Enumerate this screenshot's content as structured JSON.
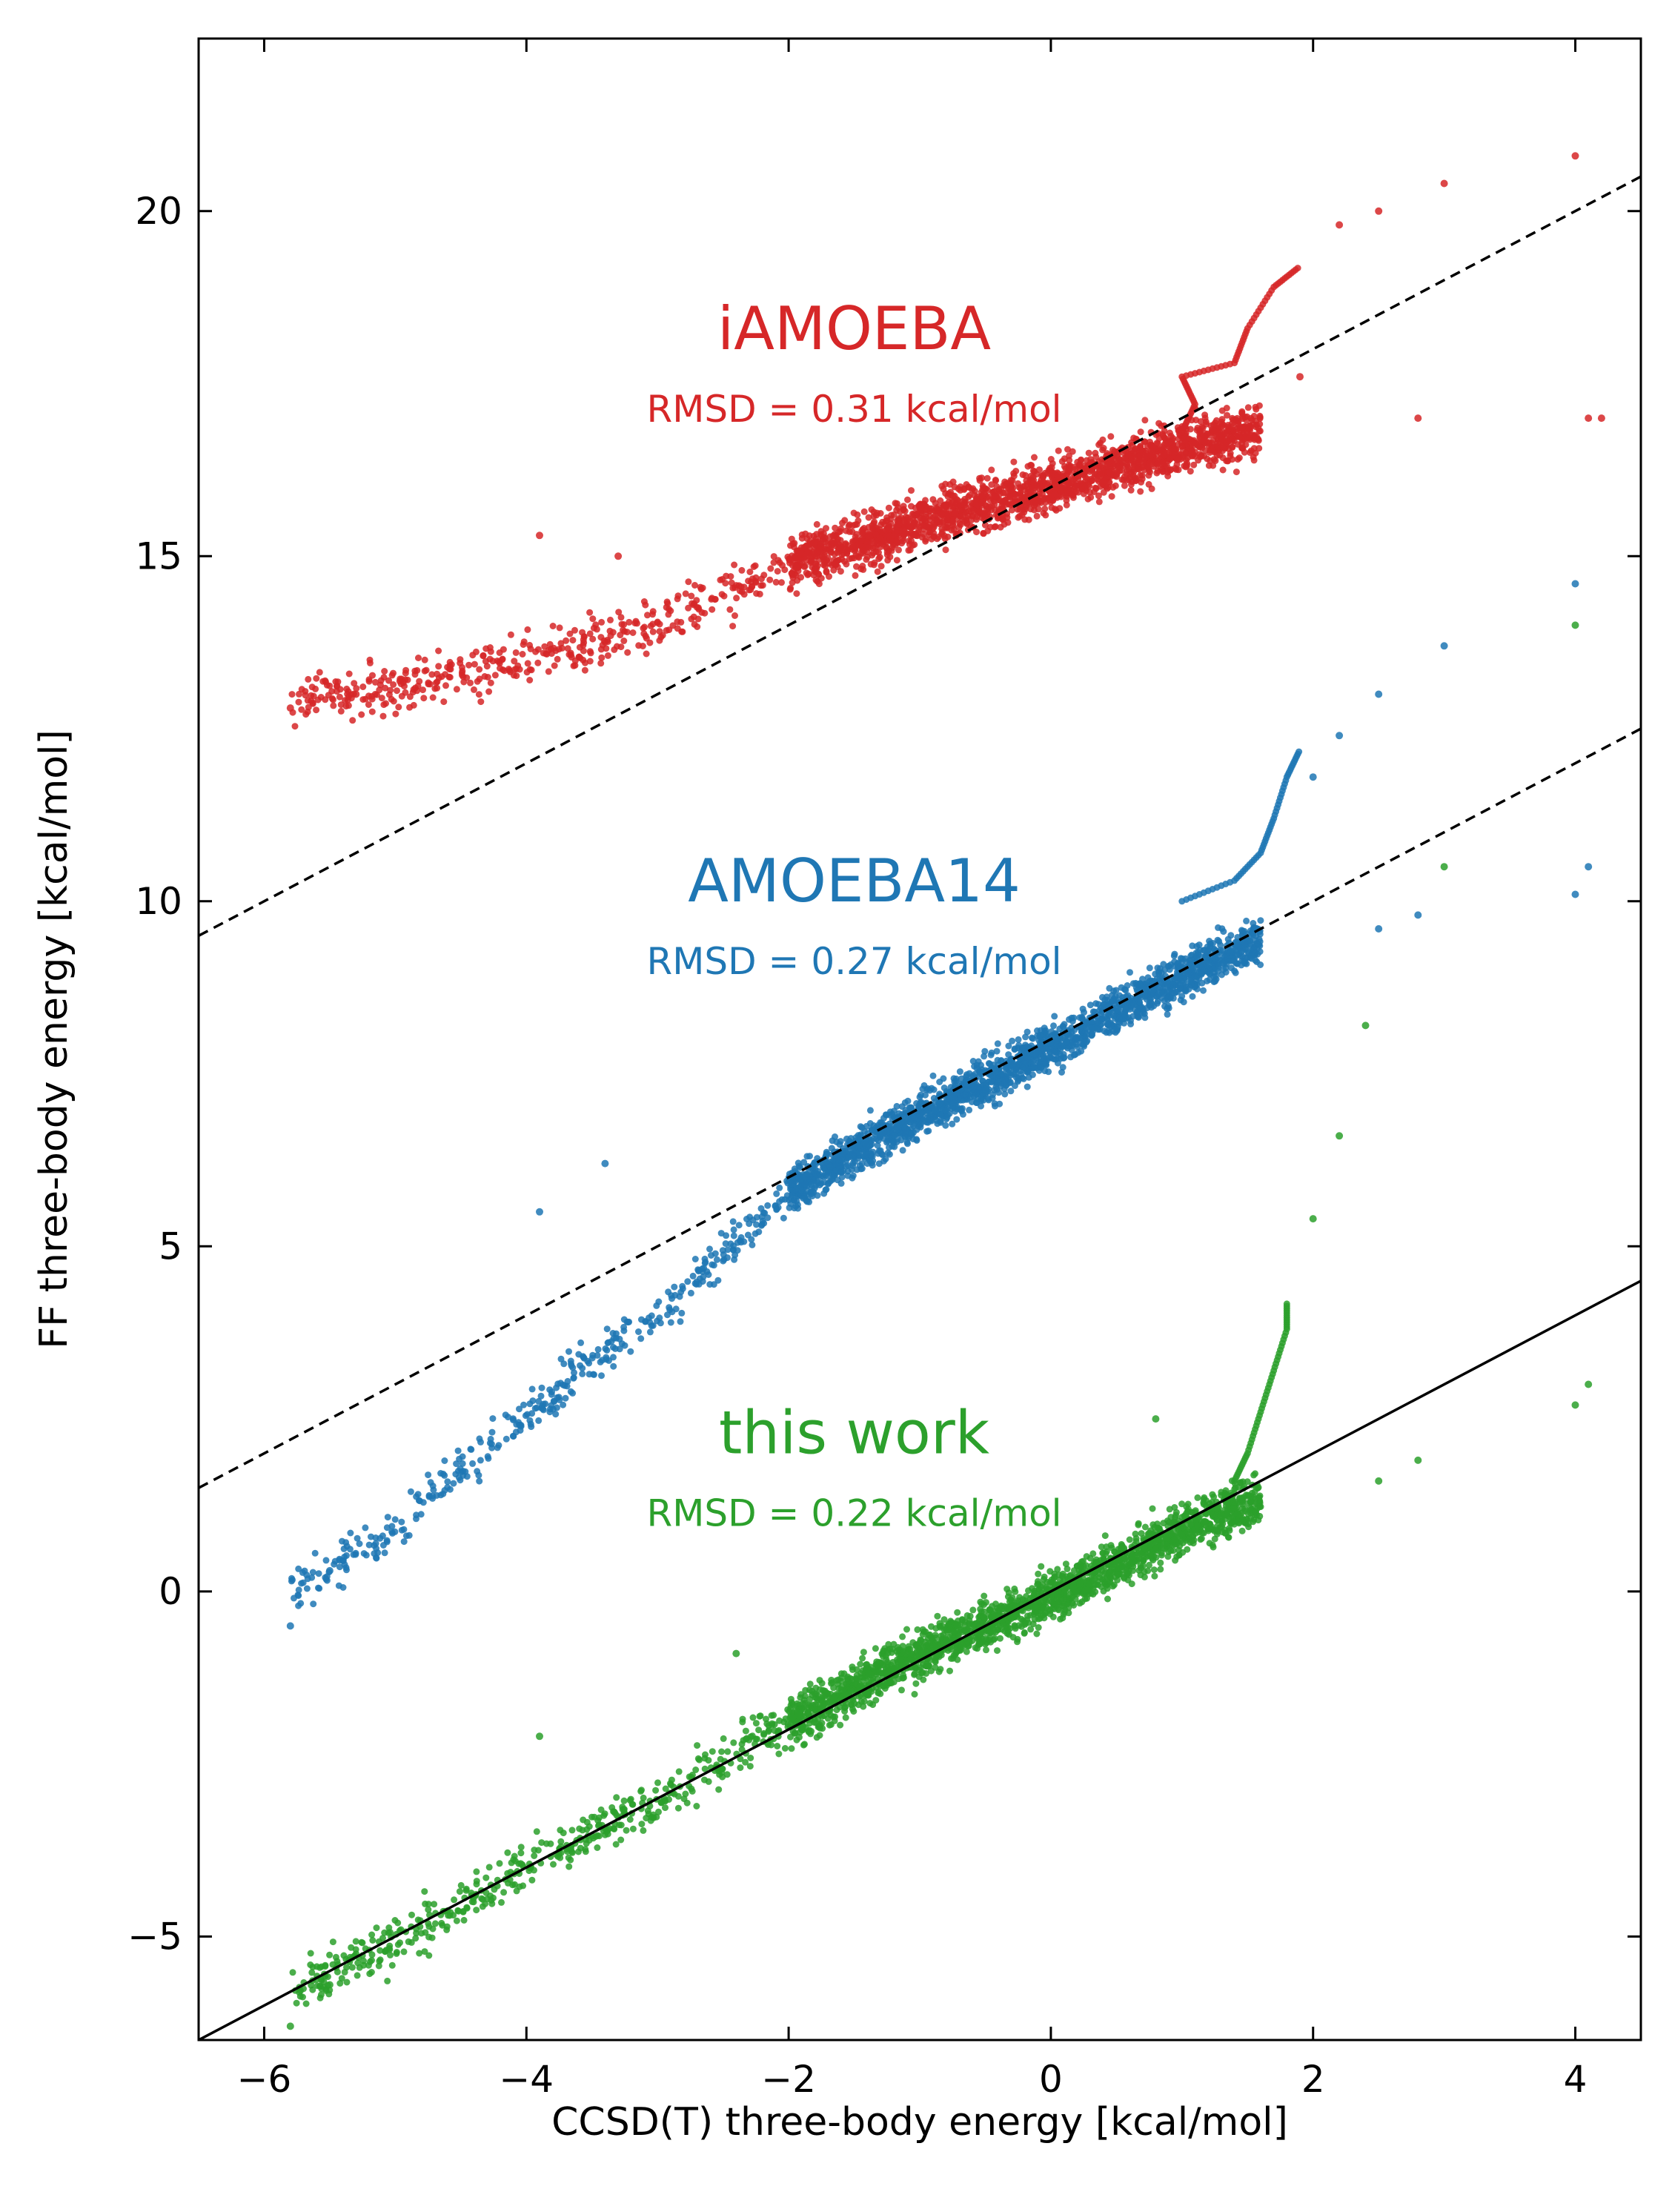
{
  "chart_data": {
    "type": "scatter",
    "xlabel": "CCSD(T) three-body energy [kcal/mol]",
    "ylabel": "FF three-body energy [kcal/mol]",
    "xlim": [
      -6.5,
      4.5
    ],
    "ylim": [
      -6.5,
      22.5
    ],
    "x_ticks": [
      -6,
      -4,
      -2,
      0,
      2,
      4
    ],
    "x_tick_labels": [
      "−6",
      "−4",
      "−2",
      "0",
      "2",
      "4"
    ],
    "y_ticks": [
      -5,
      0,
      5,
      10,
      15,
      20
    ],
    "y_tick_labels": [
      "−5",
      "0",
      "5",
      "10",
      "15",
      "20"
    ],
    "grid": false,
    "series": [
      {
        "title": "iAMOEBA",
        "rmsd_label": "RMSD = 0.31 kcal/mol",
        "color": "#d62728",
        "offset": 16,
        "label_at": [
          -1.5,
          18.0
        ],
        "trend_points": [
          [
            -5.8,
            12.9
          ],
          [
            -5.0,
            13.1
          ],
          [
            -4.0,
            13.5
          ],
          [
            -3.0,
            14.0
          ],
          [
            -2.0,
            14.9
          ],
          [
            -1.0,
            15.5
          ],
          [
            0.0,
            16.0
          ],
          [
            1.0,
            16.6
          ],
          [
            1.5,
            16.8
          ]
        ],
        "spread": 0.25,
        "outliers": [
          [
            -5.8,
            12.8
          ],
          [
            -5.3,
            13.0
          ],
          [
            -3.9,
            15.3
          ],
          [
            -3.3,
            15.0
          ],
          [
            1.9,
            17.6
          ],
          [
            2.2,
            19.8
          ],
          [
            2.5,
            20.0
          ],
          [
            3.0,
            20.4
          ],
          [
            2.8,
            17.0
          ],
          [
            4.0,
            20.8
          ],
          [
            4.1,
            17.0
          ],
          [
            4.2,
            17.0
          ]
        ],
        "branch": [
          [
            1.0,
            16.8
          ],
          [
            1.1,
            17.2
          ],
          [
            1.0,
            17.6
          ],
          [
            1.4,
            17.8
          ],
          [
            1.5,
            18.3
          ],
          [
            1.7,
            18.9
          ],
          [
            1.9,
            19.2
          ]
        ]
      },
      {
        "title": "AMOEBA14",
        "rmsd_label": "RMSD = 0.27 kcal/mol",
        "color": "#1f77b4",
        "offset": 8,
        "label_at": [
          -1.5,
          10.0
        ],
        "trend_points": [
          [
            -5.8,
            0.0
          ],
          [
            -5.0,
            0.9
          ],
          [
            -4.5,
            1.8
          ],
          [
            -4.0,
            2.5
          ],
          [
            -3.5,
            3.4
          ],
          [
            -3.0,
            4.0
          ],
          [
            -2.0,
            5.8
          ],
          [
            -1.0,
            6.9
          ],
          [
            0.0,
            7.9
          ],
          [
            1.0,
            8.9
          ],
          [
            1.5,
            9.4
          ]
        ],
        "spread": 0.22,
        "outliers": [
          [
            -5.8,
            -0.5
          ],
          [
            -5.5,
            0.3
          ],
          [
            -3.9,
            5.5
          ],
          [
            -3.4,
            6.2
          ],
          [
            2.0,
            11.8
          ],
          [
            2.2,
            12.4
          ],
          [
            2.5,
            13.0
          ],
          [
            2.5,
            9.6
          ],
          [
            3.0,
            13.7
          ],
          [
            2.8,
            9.8
          ],
          [
            4.0,
            14.6
          ],
          [
            4.0,
            10.1
          ],
          [
            4.1,
            10.5
          ]
        ],
        "branch": [
          [
            1.0,
            10.0
          ],
          [
            1.4,
            10.3
          ],
          [
            1.6,
            10.7
          ],
          [
            1.7,
            11.2
          ],
          [
            1.8,
            11.8
          ],
          [
            1.9,
            12.2
          ]
        ]
      },
      {
        "title": "this work",
        "rmsd_label": "RMSD = 0.22 kcal/mol",
        "color": "#2ca02c",
        "offset": 0,
        "label_at": [
          -1.5,
          2.0
        ],
        "trend_points": [
          [
            -5.8,
            -5.8
          ],
          [
            -5.0,
            -5.1
          ],
          [
            -4.0,
            -4.0
          ],
          [
            -3.0,
            -3.0
          ],
          [
            -2.0,
            -1.9
          ],
          [
            -1.0,
            -0.9
          ],
          [
            0.0,
            -0.1
          ],
          [
            1.0,
            0.9
          ],
          [
            1.5,
            1.3
          ]
        ],
        "spread": 0.24,
        "outliers": [
          [
            -5.8,
            -6.3
          ],
          [
            -5.5,
            -5.7
          ],
          [
            -3.9,
            -2.1
          ],
          [
            -2.4,
            -0.9
          ],
          [
            0.8,
            2.5
          ],
          [
            2.0,
            5.4
          ],
          [
            2.2,
            6.6
          ],
          [
            2.4,
            8.2
          ],
          [
            2.5,
            1.6
          ],
          [
            2.8,
            1.9
          ],
          [
            3.0,
            10.5
          ],
          [
            4.0,
            14.0
          ],
          [
            4.0,
            2.7
          ],
          [
            4.1,
            3.0
          ]
        ],
        "branch": [
          [
            1.4,
            1.6
          ],
          [
            1.5,
            2.0
          ],
          [
            1.6,
            2.6
          ],
          [
            1.7,
            3.2
          ],
          [
            1.8,
            3.8
          ],
          [
            1.8,
            4.2
          ]
        ]
      }
    ],
    "reference_lines": [
      {
        "style": "dashed",
        "slope": 1,
        "intercept": 16
      },
      {
        "style": "dashed",
        "slope": 1,
        "intercept": 8
      },
      {
        "style": "solid",
        "slope": 1,
        "intercept": 0
      }
    ]
  }
}
